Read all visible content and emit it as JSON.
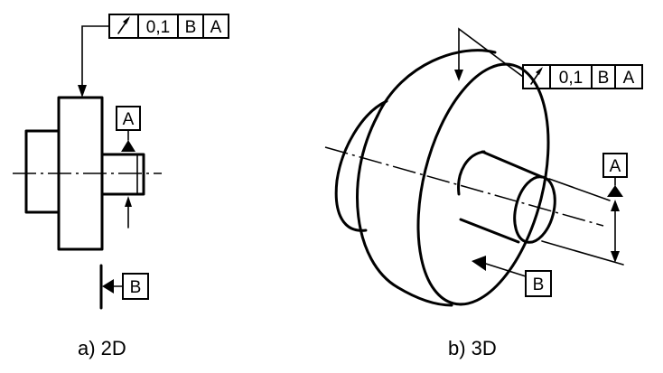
{
  "panel_2d": {
    "caption": "a) 2D",
    "frame": {
      "symbol": "runout-icon",
      "tolerance": "0,1",
      "datum_1": "B",
      "datum_2": "A"
    },
    "datum_a": "A",
    "datum_b": "B"
  },
  "panel_3d": {
    "caption": "b) 3D",
    "frame": {
      "symbol": "runout-icon",
      "tolerance": "0,1",
      "datum_1": "B",
      "datum_2": "A"
    },
    "datum_a": "A",
    "datum_b": "B"
  },
  "colors": {
    "line": "#000000",
    "background": "#ffffff"
  }
}
